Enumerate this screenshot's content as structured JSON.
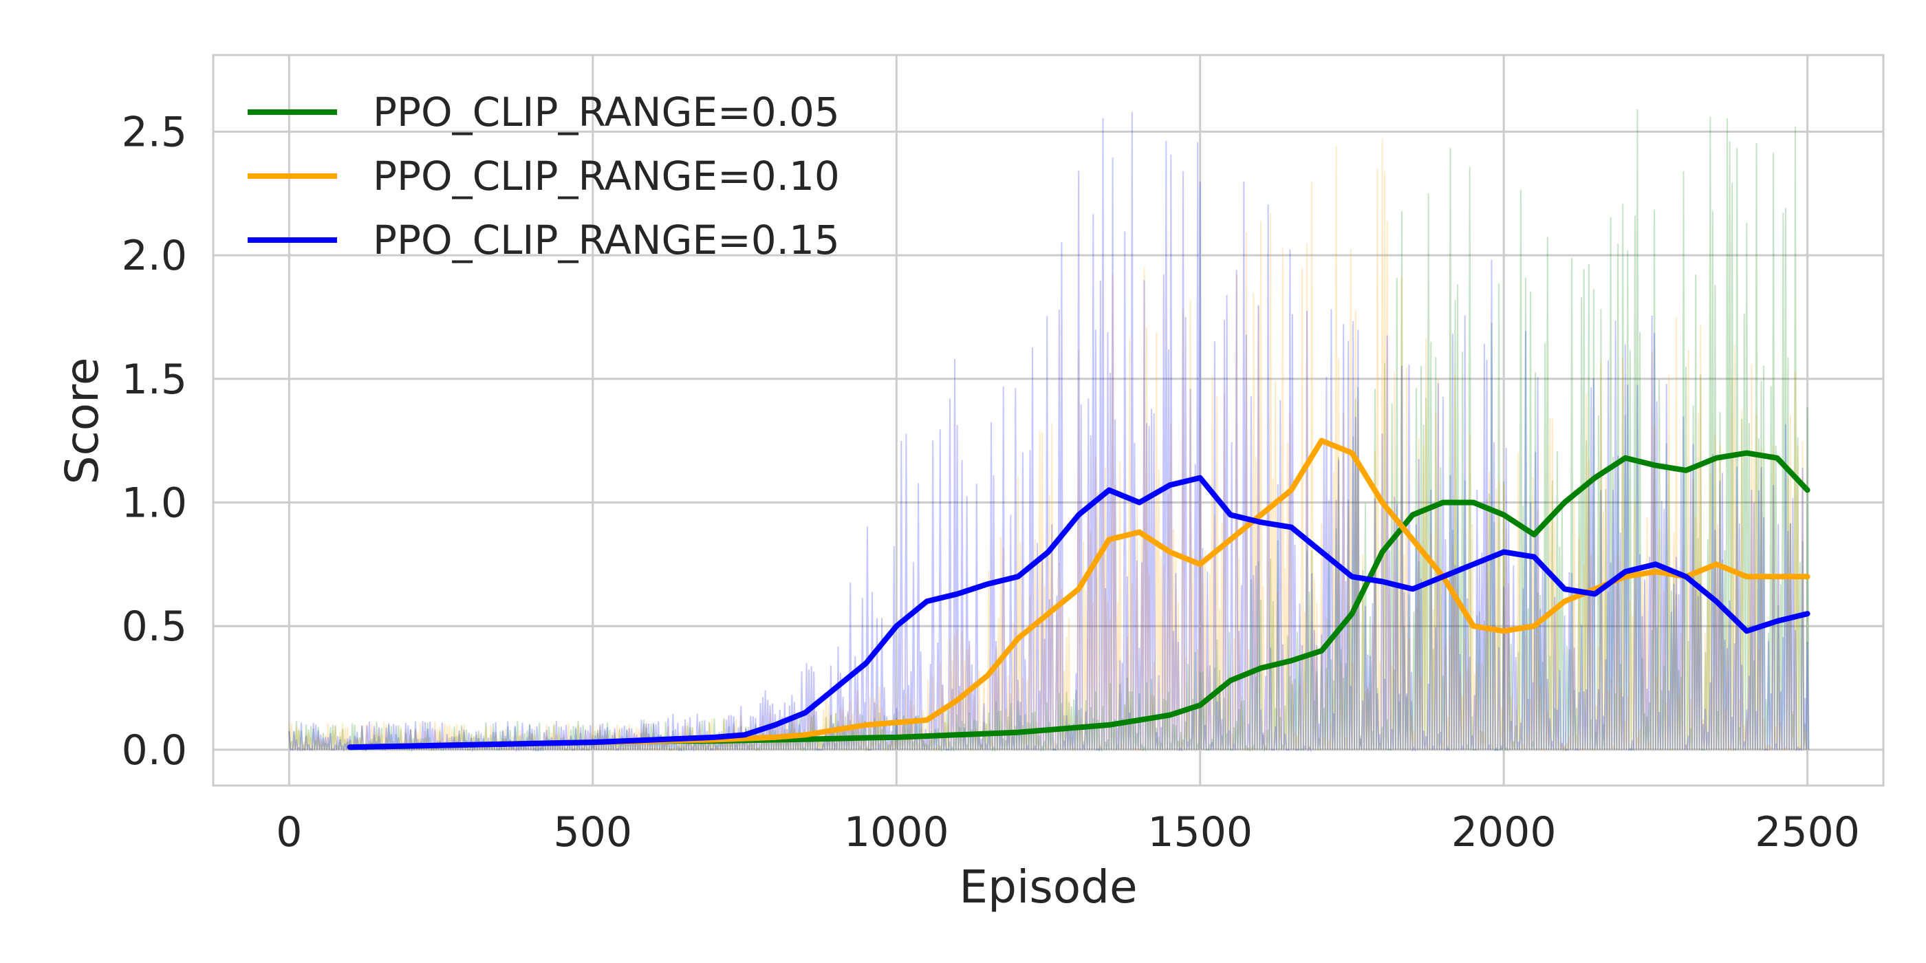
{
  "chart_data": {
    "type": "line",
    "title": "",
    "xlabel": "Episode",
    "ylabel": "Score",
    "xlim": [
      -125,
      2625
    ],
    "ylim": [
      -0.145,
      2.81
    ],
    "xticks": [
      0,
      500,
      1000,
      1500,
      2000,
      2500
    ],
    "xtick_labels": [
      "0",
      "500",
      "1000",
      "1500",
      "2000",
      "2500"
    ],
    "yticks": [
      0.0,
      0.5,
      1.0,
      1.5,
      2.0,
      2.5
    ],
    "ytick_labels": [
      "0.0",
      "0.5",
      "1.0",
      "1.5",
      "2.0",
      "2.5"
    ],
    "grid": true,
    "legend_position": "top-left",
    "x": [
      100,
      200,
      300,
      400,
      500,
      600,
      700,
      750,
      800,
      850,
      900,
      950,
      1000,
      1050,
      1100,
      1150,
      1200,
      1250,
      1300,
      1350,
      1400,
      1450,
      1500,
      1550,
      1600,
      1650,
      1700,
      1750,
      1800,
      1850,
      1900,
      1950,
      2000,
      2050,
      2100,
      2150,
      2200,
      2250,
      2300,
      2350,
      2400,
      2450,
      2500
    ],
    "series": [
      {
        "name": "PPO_CLIP_RANGE=0.05",
        "color": "#008000",
        "values": [
          0.01,
          0.015,
          0.02,
          0.025,
          0.03,
          0.035,
          0.035,
          0.038,
          0.04,
          0.042,
          0.045,
          0.048,
          0.05,
          0.055,
          0.06,
          0.065,
          0.07,
          0.08,
          0.09,
          0.1,
          0.12,
          0.14,
          0.18,
          0.28,
          0.33,
          0.36,
          0.4,
          0.55,
          0.8,
          0.95,
          1.0,
          1.0,
          0.95,
          0.87,
          1.0,
          1.1,
          1.18,
          1.15,
          1.13,
          1.18,
          1.2,
          1.18,
          1.05
        ]
      },
      {
        "name": "PPO_CLIP_RANGE=0.10",
        "color": "#ffa500",
        "values": [
          0.01,
          0.015,
          0.02,
          0.025,
          0.03,
          0.035,
          0.04,
          0.045,
          0.05,
          0.06,
          0.08,
          0.1,
          0.11,
          0.12,
          0.2,
          0.3,
          0.45,
          0.55,
          0.65,
          0.85,
          0.88,
          0.8,
          0.75,
          0.85,
          0.95,
          1.05,
          1.25,
          1.2,
          1.0,
          0.85,
          0.7,
          0.5,
          0.48,
          0.5,
          0.6,
          0.65,
          0.7,
          0.72,
          0.7,
          0.75,
          0.7,
          0.7,
          0.7
        ]
      },
      {
        "name": "PPO_CLIP_RANGE=0.15",
        "color": "#0000ff",
        "values": [
          0.01,
          0.015,
          0.02,
          0.025,
          0.03,
          0.04,
          0.05,
          0.06,
          0.1,
          0.15,
          0.25,
          0.35,
          0.5,
          0.6,
          0.63,
          0.67,
          0.7,
          0.8,
          0.95,
          1.05,
          1.0,
          1.07,
          1.1,
          0.95,
          0.92,
          0.9,
          0.8,
          0.7,
          0.68,
          0.65,
          0.7,
          0.75,
          0.8,
          0.78,
          0.65,
          0.63,
          0.72,
          0.75,
          0.7,
          0.6,
          0.48,
          0.52,
          0.55
        ]
      }
    ]
  }
}
